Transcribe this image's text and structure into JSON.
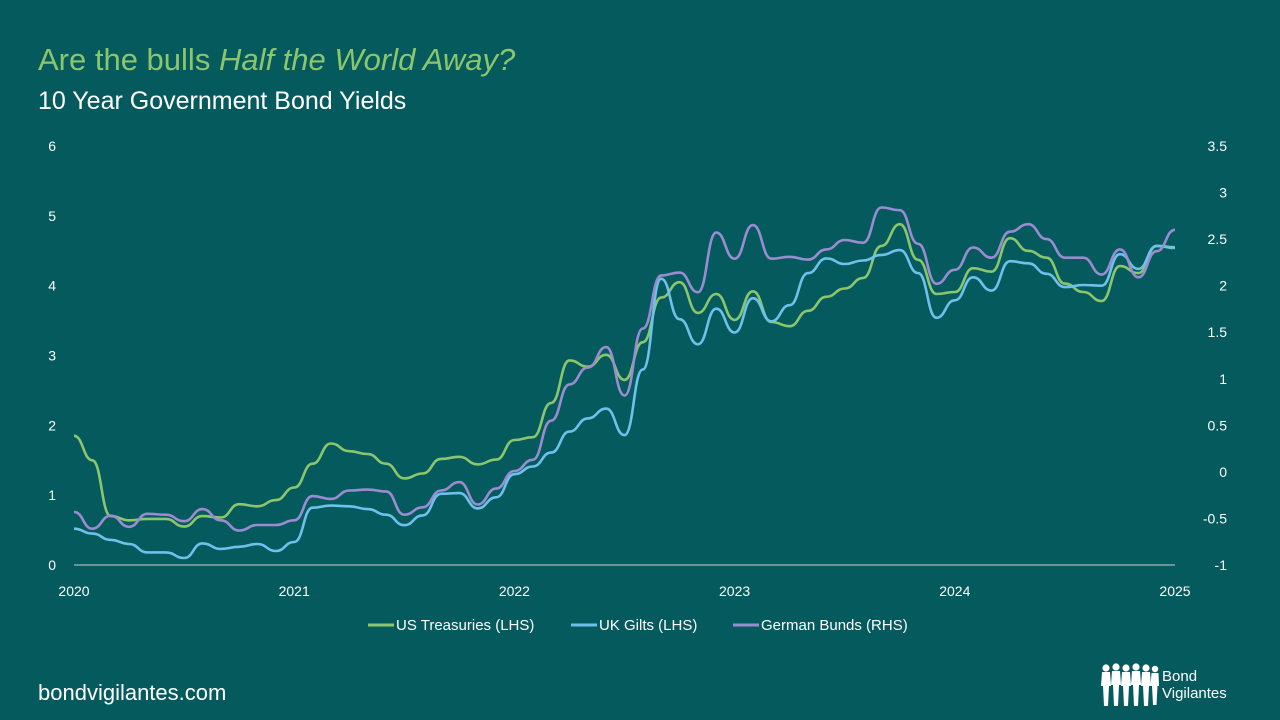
{
  "header": {
    "title_plain": "Are the bulls ",
    "title_italic": "Half the World Away?",
    "subtitle": "10 Year Government Bond Yields"
  },
  "footer": {
    "website": "bondvigilantes.com",
    "logo_line1": "Bond",
    "logo_line2": "Vigilantes"
  },
  "colors": {
    "background": "#055a5e",
    "title": "#8cc66c",
    "us": "#8cc66c",
    "uk": "#6ec1ea",
    "de": "#9a8cd0"
  },
  "chart_data": {
    "type": "line",
    "title": "10 Year Government Bond Yields",
    "x_ticks": [
      "2020",
      "2021",
      "2022",
      "2023",
      "2024",
      "2025"
    ],
    "y_left": {
      "range": [
        0,
        6
      ],
      "ticks": [
        "0",
        "1",
        "2",
        "3",
        "4",
        "5",
        "6"
      ]
    },
    "y_right": {
      "range": [
        -1,
        3.5
      ],
      "ticks": [
        "-1",
        "-0.5",
        "0",
        "0.5",
        "1",
        "1.5",
        "2",
        "2.5",
        "3",
        "3.5"
      ]
    },
    "grid": false,
    "legend_position": "bottom",
    "series": [
      {
        "name": "US Treasuries (LHS)",
        "axis": "left",
        "color": "#8cc66c",
        "points": [
          [
            "2020-01",
            1.85
          ],
          [
            "2020-02",
            1.5
          ],
          [
            "2020-03",
            0.7
          ],
          [
            "2020-04",
            0.64
          ],
          [
            "2020-05",
            0.66
          ],
          [
            "2020-06",
            0.66
          ],
          [
            "2020-07",
            0.55
          ],
          [
            "2020-08",
            0.7
          ],
          [
            "2020-09",
            0.68
          ],
          [
            "2020-10",
            0.87
          ],
          [
            "2020-11",
            0.84
          ],
          [
            "2020-12",
            0.93
          ],
          [
            "2021-01",
            1.11
          ],
          [
            "2021-02",
            1.45
          ],
          [
            "2021-03",
            1.74
          ],
          [
            "2021-04",
            1.63
          ],
          [
            "2021-05",
            1.59
          ],
          [
            "2021-06",
            1.45
          ],
          [
            "2021-07",
            1.24
          ],
          [
            "2021-08",
            1.31
          ],
          [
            "2021-09",
            1.52
          ],
          [
            "2021-10",
            1.55
          ],
          [
            "2021-11",
            1.44
          ],
          [
            "2021-12",
            1.51
          ],
          [
            "2022-01",
            1.79
          ],
          [
            "2022-02",
            1.83
          ],
          [
            "2022-03",
            2.32
          ],
          [
            "2022-04",
            2.93
          ],
          [
            "2022-05",
            2.84
          ],
          [
            "2022-06",
            3.01
          ],
          [
            "2022-07",
            2.65
          ],
          [
            "2022-08",
            3.19
          ],
          [
            "2022-09",
            3.83
          ],
          [
            "2022-10",
            4.05
          ],
          [
            "2022-11",
            3.61
          ],
          [
            "2022-12",
            3.88
          ],
          [
            "2023-01",
            3.51
          ],
          [
            "2023-02",
            3.92
          ],
          [
            "2023-03",
            3.48
          ],
          [
            "2023-04",
            3.42
          ],
          [
            "2023-05",
            3.64
          ],
          [
            "2023-06",
            3.84
          ],
          [
            "2023-07",
            3.96
          ],
          [
            "2023-08",
            4.11
          ],
          [
            "2023-09",
            4.57
          ],
          [
            "2023-10",
            4.88
          ],
          [
            "2023-11",
            4.37
          ],
          [
            "2023-12",
            3.88
          ],
          [
            "2024-01",
            3.91
          ],
          [
            "2024-02",
            4.25
          ],
          [
            "2024-03",
            4.2
          ],
          [
            "2024-04",
            4.68
          ],
          [
            "2024-05",
            4.5
          ],
          [
            "2024-06",
            4.4
          ],
          [
            "2024-07",
            4.03
          ],
          [
            "2024-08",
            3.91
          ],
          [
            "2024-09",
            3.78
          ],
          [
            "2024-10",
            4.28
          ],
          [
            "2024-11",
            4.18
          ],
          [
            "2024-12",
            4.57
          ],
          [
            "2025-01",
            4.55
          ]
        ]
      },
      {
        "name": "UK Gilts (LHS)",
        "axis": "left",
        "color": "#6ec1ea",
        "points": [
          [
            "2020-01",
            0.52
          ],
          [
            "2020-02",
            0.45
          ],
          [
            "2020-03",
            0.36
          ],
          [
            "2020-04",
            0.3
          ],
          [
            "2020-05",
            0.18
          ],
          [
            "2020-06",
            0.18
          ],
          [
            "2020-07",
            0.1
          ],
          [
            "2020-08",
            0.31
          ],
          [
            "2020-09",
            0.23
          ],
          [
            "2020-10",
            0.26
          ],
          [
            "2020-11",
            0.3
          ],
          [
            "2020-12",
            0.2
          ],
          [
            "2021-01",
            0.33
          ],
          [
            "2021-02",
            0.82
          ],
          [
            "2021-03",
            0.85
          ],
          [
            "2021-04",
            0.84
          ],
          [
            "2021-05",
            0.8
          ],
          [
            "2021-06",
            0.72
          ],
          [
            "2021-07",
            0.57
          ],
          [
            "2021-08",
            0.71
          ],
          [
            "2021-09",
            1.02
          ],
          [
            "2021-10",
            1.03
          ],
          [
            "2021-11",
            0.81
          ],
          [
            "2021-12",
            0.97
          ],
          [
            "2022-01",
            1.3
          ],
          [
            "2022-02",
            1.41
          ],
          [
            "2022-03",
            1.61
          ],
          [
            "2022-04",
            1.91
          ],
          [
            "2022-05",
            2.1
          ],
          [
            "2022-06",
            2.24
          ],
          [
            "2022-07",
            1.86
          ],
          [
            "2022-08",
            2.8
          ],
          [
            "2022-09",
            4.1
          ],
          [
            "2022-10",
            3.52
          ],
          [
            "2022-11",
            3.16
          ],
          [
            "2022-12",
            3.67
          ],
          [
            "2023-01",
            3.33
          ],
          [
            "2023-02",
            3.82
          ],
          [
            "2023-03",
            3.49
          ],
          [
            "2023-04",
            3.72
          ],
          [
            "2023-05",
            4.18
          ],
          [
            "2023-06",
            4.39
          ],
          [
            "2023-07",
            4.31
          ],
          [
            "2023-08",
            4.36
          ],
          [
            "2023-09",
            4.44
          ],
          [
            "2023-10",
            4.51
          ],
          [
            "2023-11",
            4.18
          ],
          [
            "2023-12",
            3.54
          ],
          [
            "2024-01",
            3.79
          ],
          [
            "2024-02",
            4.12
          ],
          [
            "2024-03",
            3.93
          ],
          [
            "2024-04",
            4.35
          ],
          [
            "2024-05",
            4.32
          ],
          [
            "2024-06",
            4.17
          ],
          [
            "2024-07",
            3.98
          ],
          [
            "2024-08",
            4.01
          ],
          [
            "2024-09",
            4.0
          ],
          [
            "2024-10",
            4.45
          ],
          [
            "2024-11",
            4.24
          ],
          [
            "2024-12",
            4.57
          ],
          [
            "2025-01",
            4.54
          ]
        ]
      },
      {
        "name": "German Bunds (RHS)",
        "axis": "right",
        "color": "#9a8cd0",
        "points": [
          [
            "2020-01",
            -0.43
          ],
          [
            "2020-02",
            -0.61
          ],
          [
            "2020-03",
            -0.47
          ],
          [
            "2020-04",
            -0.59
          ],
          [
            "2020-05",
            -0.45
          ],
          [
            "2020-06",
            -0.46
          ],
          [
            "2020-07",
            -0.53
          ],
          [
            "2020-08",
            -0.4
          ],
          [
            "2020-09",
            -0.52
          ],
          [
            "2020-10",
            -0.63
          ],
          [
            "2020-11",
            -0.57
          ],
          [
            "2020-12",
            -0.57
          ],
          [
            "2021-01",
            -0.52
          ],
          [
            "2021-02",
            -0.26
          ],
          [
            "2021-03",
            -0.29
          ],
          [
            "2021-04",
            -0.2
          ],
          [
            "2021-05",
            -0.19
          ],
          [
            "2021-06",
            -0.21
          ],
          [
            "2021-07",
            -0.46
          ],
          [
            "2021-08",
            -0.38
          ],
          [
            "2021-09",
            -0.2
          ],
          [
            "2021-10",
            -0.11
          ],
          [
            "2021-11",
            -0.35
          ],
          [
            "2021-12",
            -0.18
          ],
          [
            "2022-01",
            0.01
          ],
          [
            "2022-02",
            0.13
          ],
          [
            "2022-03",
            0.55
          ],
          [
            "2022-04",
            0.94
          ],
          [
            "2022-05",
            1.12
          ],
          [
            "2022-06",
            1.34
          ],
          [
            "2022-07",
            0.82
          ],
          [
            "2022-08",
            1.54
          ],
          [
            "2022-09",
            2.11
          ],
          [
            "2022-10",
            2.14
          ],
          [
            "2022-11",
            1.93
          ],
          [
            "2022-12",
            2.57
          ],
          [
            "2023-01",
            2.29
          ],
          [
            "2023-02",
            2.65
          ],
          [
            "2023-03",
            2.29
          ],
          [
            "2023-04",
            2.31
          ],
          [
            "2023-05",
            2.28
          ],
          [
            "2023-06",
            2.39
          ],
          [
            "2023-07",
            2.49
          ],
          [
            "2023-08",
            2.46
          ],
          [
            "2023-09",
            2.84
          ],
          [
            "2023-10",
            2.81
          ],
          [
            "2023-11",
            2.45
          ],
          [
            "2023-12",
            2.02
          ],
          [
            "2024-01",
            2.17
          ],
          [
            "2024-02",
            2.41
          ],
          [
            "2024-03",
            2.3
          ],
          [
            "2024-04",
            2.58
          ],
          [
            "2024-05",
            2.66
          ],
          [
            "2024-06",
            2.5
          ],
          [
            "2024-07",
            2.3
          ],
          [
            "2024-08",
            2.3
          ],
          [
            "2024-09",
            2.12
          ],
          [
            "2024-10",
            2.39
          ],
          [
            "2024-11",
            2.09
          ],
          [
            "2024-12",
            2.37
          ],
          [
            "2025-01",
            2.6
          ]
        ]
      }
    ]
  }
}
